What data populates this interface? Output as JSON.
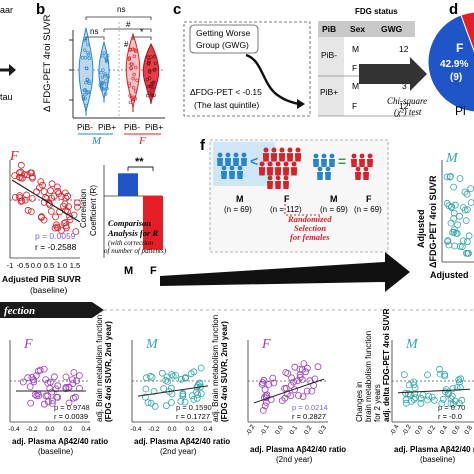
{
  "panels": {
    "b": {
      "letter": "b",
      "ylabel": "Δ FDG-PET 4roi SUVR",
      "sig_ns_top": "ns",
      "sig_hash_top": "#",
      "sig_ns_left": "ns",
      "sig_hash_mid": "#",
      "sig_star": "*",
      "pib_neg": "PiB-",
      "pib_pos": "PiB+",
      "group_m": "M",
      "group_f": "F"
    },
    "c": {
      "letter": "c",
      "box_line1": "Getting Worse",
      "box_line2": "Group (GWG)",
      "delta_line": "ΔFDG-PET < -0.15",
      "quintile_line": "(The last quintile)",
      "table_title": "FDG status",
      "table_headers": [
        "PiB",
        "Sex",
        "GWG"
      ],
      "rows": [
        {
          "pib": "PiB-",
          "sex": "M",
          "gwg": "12"
        },
        {
          "pib": "",
          "sex": "F",
          "gwg": "9"
        },
        {
          "pib": "PiB+",
          "sex": "M",
          "gwg": "3"
        },
        {
          "pib": "",
          "sex": "F",
          "gwg": "12"
        }
      ],
      "chi_line1": "Chi-square",
      "chi_line2": "(χ²) test"
    },
    "d": {
      "letter": "d",
      "pie_label_letter": "F",
      "pie_label_pct": "42.9%",
      "pie_label_n": "(9)",
      "cut_text": "Pi"
    },
    "left_edge": {
      "text1": "aar",
      "text2": "tau"
    },
    "scatter_F": {
      "letter": "F",
      "p_text": "p = 0.0059",
      "r_text": "r = -0.2588",
      "xlabel": "Adjusted PiB SUVR",
      "xlabel2": "(baseline)",
      "ticks": [
        "-1",
        "-0.5",
        "0.0",
        "0.5",
        "1.0",
        "1.5"
      ]
    },
    "bar_R": {
      "ylabel1": "Correlation",
      "ylabel2": "Coefficient (R)",
      "sig": "**",
      "note1": "Comparison",
      "note2": "Analysis for R",
      "note3": "(with correction",
      "note4": "of number of patients)",
      "cat_m": "M",
      "cat_f": "F"
    },
    "f": {
      "letter": "f",
      "m_label": "M",
      "m_n": "(n = 69)",
      "f_label": "F",
      "f_n": "(n = 112)",
      "rand1": "Randomized",
      "rand2": "Selection",
      "rand3": "for females",
      "m2_label": "M",
      "m2_n": "(n = 69)",
      "f2_label": "F",
      "f2_n": "(n = 69)"
    },
    "right_scatter": {
      "letter": "M",
      "yl1": "Adjusted",
      "yl2": "ΔFDG-PET 4roi SUVR",
      "xlabel": "Adjusted"
    },
    "section": {
      "title": "fection"
    },
    "bottom": [
      {
        "letter": "F",
        "p_text": "p = 0.9748",
        "r_text": "r = 0.0039",
        "xlabel": "adj. Plasma Aβ42/40 ratio",
        "xsub": "(baseline)",
        "ylab1": "",
        "ylab2": "",
        "ylab3": "",
        "ticks": [
          "-0.4",
          "-0.2",
          "0.0",
          "0.2",
          "0.4"
        ]
      },
      {
        "letter": "M",
        "p_text": "p = 0.1590",
        "r_text": "r = 0.1727",
        "xlabel": "adj. Plasma Aβ42/40 ratio",
        "xsub": "(2nd year)",
        "ylab1": "adj. Brain metabolism function",
        "ylab2": "(FDG 4roi SUVR, 2nd year)",
        "ylab3": "",
        "ticks": [
          "-0.4",
          "-0.2",
          "0.0",
          "0.2",
          "0.4"
        ]
      },
      {
        "letter": "F",
        "p_text": "p = 0.0214",
        "r_text": "r = 0.2827",
        "xlabel": "adj. Plasma Aβ42/40 ratio",
        "xsub": "(2nd year)",
        "ylab1": "adj. Brain metabolism function",
        "ylab2": "(FDG 4roi SUVR, 2nd year)",
        "ylab3": "",
        "ticks": [
          "-0.2",
          "-0.1",
          "0.0",
          "0.1",
          "0.2",
          "0.3"
        ]
      },
      {
        "letter": "M",
        "p_text": "p = 0.70",
        "r_text": "r = -0.0",
        "xlabel": "adj. Plasma Aβ42/40 ratio",
        "xsub": "(baseline)",
        "ylab1": "Changes in",
        "ylab2": "brain metabolism function",
        "ylab3": "for 2 years",
        "ylab4": "adj. delta FDG-PET 4roi SUVR",
        "ticks": [
          "-0.4",
          "-0.2",
          "0.0",
          "0.2",
          "0.4",
          "0.6",
          "0.8"
        ]
      }
    ]
  },
  "colors": {
    "male": "#2a84c8",
    "female": "#d82128",
    "teal": "#35a8a8",
    "purple": "#9b3fc0",
    "pie_red": "#e41e24",
    "pie_blue": "#1f55c6",
    "arrow": "#1a1a1a",
    "sig_red": "#d82128"
  },
  "chart_data": [
    {
      "type": "bar",
      "panel": "correlation-coefficient",
      "categories": [
        "M",
        "F"
      ],
      "values": [
        0.11,
        -0.26
      ],
      "ylim": [
        -0.3,
        0.15
      ],
      "grid": false
    },
    {
      "type": "pie",
      "panel": "d",
      "labels": [
        "F",
        "M"
      ],
      "values": [
        42.9,
        57.1
      ]
    }
  ]
}
